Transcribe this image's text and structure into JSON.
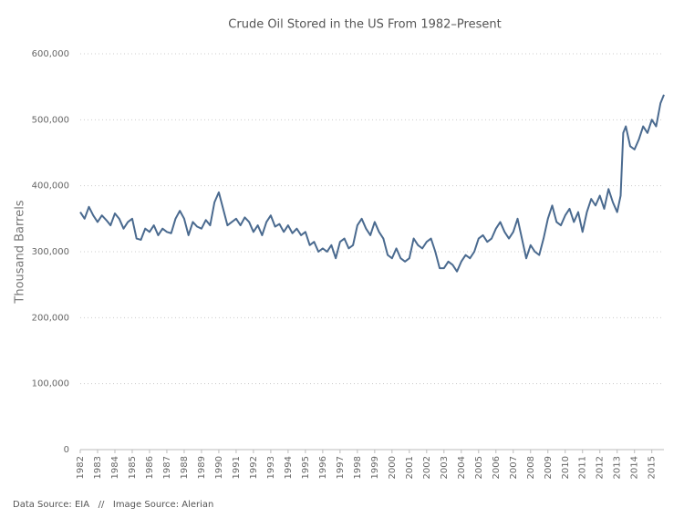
{
  "chart_data": {
    "type": "line",
    "title": "Crude Oil Stored in the US From 1982–Present",
    "y_label": "Thousand Barrels",
    "source": "Data Source: EIA   //   Image Source: Alerian",
    "color": "#4a6a8f",
    "grid": true,
    "x": [
      1982,
      1982.25,
      1982.5,
      1982.75,
      1983,
      1983.25,
      1983.5,
      1983.75,
      1984,
      1984.25,
      1984.5,
      1984.75,
      1985,
      1985.25,
      1985.5,
      1985.75,
      1986,
      1986.25,
      1986.5,
      1986.75,
      1987,
      1987.25,
      1987.5,
      1987.75,
      1988,
      1988.25,
      1988.5,
      1988.75,
      1989,
      1989.25,
      1989.5,
      1989.75,
      1990,
      1990.25,
      1990.5,
      1990.75,
      1991,
      1991.25,
      1991.5,
      1991.75,
      1992,
      1992.25,
      1992.5,
      1992.75,
      1993,
      1993.25,
      1993.5,
      1993.75,
      1994,
      1994.25,
      1994.5,
      1994.75,
      1995,
      1995.25,
      1995.5,
      1995.75,
      1996,
      1996.25,
      1996.5,
      1996.75,
      1997,
      1997.25,
      1997.5,
      1997.75,
      1998,
      1998.25,
      1998.5,
      1998.75,
      1999,
      1999.25,
      1999.5,
      1999.75,
      2000,
      2000.25,
      2000.5,
      2000.75,
      2001,
      2001.25,
      2001.5,
      2001.75,
      2002,
      2002.25,
      2002.5,
      2002.75,
      2003,
      2003.25,
      2003.5,
      2003.75,
      2004,
      2004.25,
      2004.5,
      2004.75,
      2005,
      2005.25,
      2005.5,
      2005.75,
      2006,
      2006.25,
      2006.5,
      2006.75,
      2007,
      2007.25,
      2007.5,
      2007.75,
      2008,
      2008.25,
      2008.5,
      2008.75,
      2009,
      2009.25,
      2009.5,
      2009.75,
      2010,
      2010.25,
      2010.5,
      2010.75,
      2011,
      2011.25,
      2011.5,
      2011.75,
      2012,
      2012.25,
      2012.5,
      2012.75,
      2013,
      2013.2,
      2013.35,
      2013.5,
      2013.75,
      2014,
      2014.25,
      2014.5,
      2014.75,
      2015,
      2015.25,
      2015.5,
      2015.7
    ],
    "values": [
      360000,
      350000,
      368000,
      355000,
      345000,
      355000,
      348000,
      340000,
      358000,
      350000,
      335000,
      345000,
      350000,
      320000,
      318000,
      335000,
      330000,
      340000,
      325000,
      335000,
      330000,
      328000,
      350000,
      362000,
      350000,
      325000,
      345000,
      338000,
      335000,
      348000,
      340000,
      375000,
      390000,
      365000,
      340000,
      345000,
      350000,
      340000,
      352000,
      345000,
      330000,
      340000,
      325000,
      345000,
      355000,
      338000,
      342000,
      330000,
      340000,
      328000,
      335000,
      325000,
      330000,
      310000,
      315000,
      300000,
      305000,
      300000,
      310000,
      290000,
      315000,
      320000,
      305000,
      310000,
      340000,
      350000,
      335000,
      325000,
      345000,
      330000,
      320000,
      295000,
      290000,
      305000,
      290000,
      285000,
      290000,
      320000,
      310000,
      305000,
      315000,
      320000,
      300000,
      275000,
      275000,
      285000,
      280000,
      270000,
      285000,
      295000,
      290000,
      300000,
      320000,
      325000,
      315000,
      320000,
      335000,
      345000,
      330000,
      320000,
      330000,
      350000,
      320000,
      290000,
      310000,
      300000,
      295000,
      320000,
      350000,
      370000,
      345000,
      340000,
      355000,
      365000,
      345000,
      360000,
      330000,
      360000,
      380000,
      370000,
      385000,
      365000,
      395000,
      375000,
      360000,
      385000,
      480000,
      490000,
      460000,
      455000,
      470000,
      490000,
      480000,
      500000,
      490000,
      525000,
      538000
    ],
    "xlim": [
      1982,
      2015.7
    ],
    "xticks": [
      1982,
      1983,
      1984,
      1985,
      1986,
      1987,
      1988,
      1989,
      1990,
      1991,
      1992,
      1993,
      1994,
      1995,
      1996,
      1997,
      1998,
      1999,
      2000,
      2001,
      2002,
      2003,
      2004,
      2005,
      2006,
      2007,
      2008,
      2009,
      2010,
      2011,
      2012,
      2013,
      2014,
      2015
    ],
    "ylim": [
      0,
      600000
    ],
    "yticks": [
      0,
      {
        "value": 100000,
        "label": "100,000"
      },
      {
        "value": 200000,
        "label": "200,000"
      },
      {
        "value": 300000,
        "label": "300,000"
      },
      {
        "value": 400000,
        "label": "400,000"
      },
      {
        "value": 500000,
        "label": "500,000"
      },
      {
        "value": 600000,
        "label": "600,000"
      }
    ]
  }
}
